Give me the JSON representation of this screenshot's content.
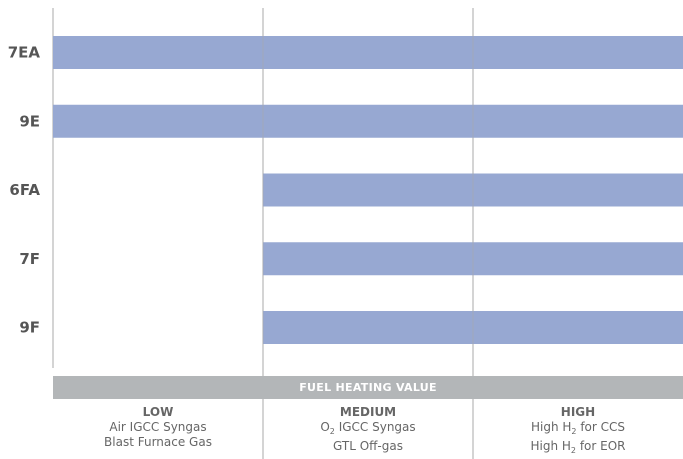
{
  "chart_data": {
    "type": "bar",
    "orientation": "horizontal-range",
    "x_axis": {
      "title": "FUEL HEATING VALUE",
      "levels": [
        {
          "name": "LOW",
          "lines": [
            {
              "text": "Air IGCC Syngas"
            },
            {
              "text": "Blast Furnace Gas"
            }
          ]
        },
        {
          "name": "MEDIUM",
          "lines": [
            {
              "text": "O",
              "sub": "2",
              "after": " IGCC Syngas"
            },
            {
              "text": "GTL Off-gas"
            }
          ]
        },
        {
          "name": "HIGH",
          "lines": [
            {
              "text": "High H",
              "sub": "2",
              "after": " for CCS"
            },
            {
              "text": "High H",
              "sub": "2",
              "after": " for EOR"
            }
          ]
        }
      ]
    },
    "categories": [
      "7EA",
      "9E",
      "6FA",
      "7F",
      "9F"
    ],
    "ranges": [
      {
        "turbine": "7EA",
        "from": "LOW",
        "to": "HIGH"
      },
      {
        "turbine": "9E",
        "from": "LOW",
        "to": "HIGH"
      },
      {
        "turbine": "6FA",
        "from": "MEDIUM",
        "to": "HIGH"
      },
      {
        "turbine": "7F",
        "from": "MEDIUM",
        "to": "HIGH"
      },
      {
        "turbine": "9F",
        "from": "MEDIUM",
        "to": "HIGH"
      }
    ],
    "grid": true,
    "colors": {
      "bar": "#97a8d2",
      "grid": "#a8a8a8",
      "band": "#b3b6b8",
      "label": "#555555",
      "sublabel": "#666666"
    }
  }
}
